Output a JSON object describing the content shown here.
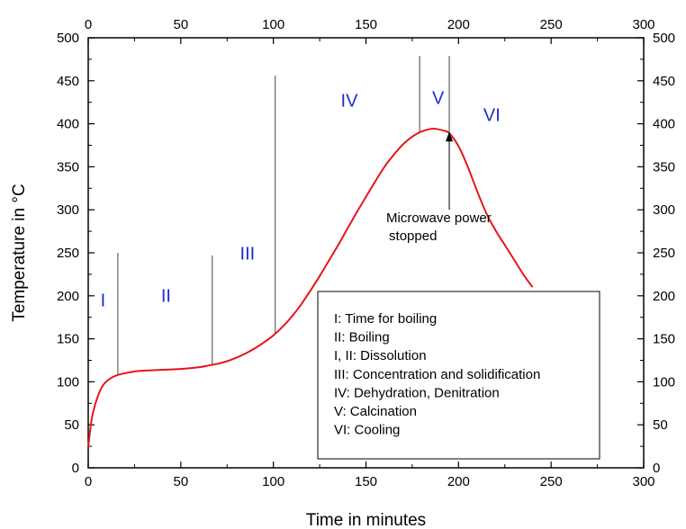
{
  "chart_data": {
    "type": "line",
    "xlabel": "Time in minutes",
    "ylabel": "Temperature in °C",
    "xlim": [
      0,
      300
    ],
    "ylim": [
      0,
      500
    ],
    "x_ticks": [
      0,
      50,
      100,
      150,
      200,
      250,
      300
    ],
    "y_ticks": [
      0,
      50,
      100,
      150,
      200,
      250,
      300,
      350,
      400,
      450,
      500
    ],
    "grid": false,
    "series": [
      {
        "color": "#e8141c",
        "x": [
          0,
          2,
          5,
          8,
          12,
          16,
          20,
          25,
          30,
          40,
          50,
          60,
          65,
          70,
          75,
          80,
          85,
          90,
          95,
          100,
          105,
          110,
          115,
          120,
          125,
          130,
          135,
          140,
          145,
          150,
          155,
          160,
          165,
          170,
          175,
          180,
          185,
          188,
          192,
          195,
          200,
          205,
          210,
          215,
          220,
          225,
          230,
          235,
          240
        ],
        "values": [
          24,
          58,
          82,
          96,
          104,
          108,
          110,
          112,
          113,
          114,
          115,
          117,
          119,
          121,
          124,
          128,
          133,
          139,
          146,
          154,
          164,
          176,
          190,
          206,
          223,
          241,
          259,
          278,
          297,
          315,
          333,
          350,
          364,
          376,
          385,
          391,
          394,
          394,
          392,
          389,
          374,
          350,
          322,
          296,
          276,
          259,
          242,
          225,
          210
        ]
      }
    ],
    "dividers": [
      {
        "x": 16,
        "y_top": 250
      },
      {
        "x": 67,
        "y_top": 247
      },
      {
        "x": 101,
        "y_top": 456
      },
      {
        "x": 179,
        "y_top": 479
      },
      {
        "x": 195,
        "y_top": 479
      }
    ],
    "phase_labels": [
      {
        "text": "I",
        "x": 8,
        "y": 188
      },
      {
        "text": "II",
        "x": 42,
        "y": 193
      },
      {
        "text": "III",
        "x": 86,
        "y": 242
      },
      {
        "text": "IV",
        "x": 141,
        "y": 420
      },
      {
        "text": "V",
        "x": 189,
        "y": 423
      },
      {
        "text": "VI",
        "x": 218,
        "y": 403
      }
    ],
    "annotation": {
      "lines": [
        "Microwave power",
        "stopped"
      ],
      "arrow_x": 195,
      "arrow_from_y": 300,
      "arrow_to_y": 392
    },
    "legend": {
      "placement": "lower-right",
      "entries": [
        "I: Time for boiling",
        "II: Boiling",
        "I, II: Dissolution",
        "III: Concentration and solidification",
        "IV: Dehydration, Denitration",
        "V: Calcination",
        "VI: Cooling"
      ]
    }
  }
}
